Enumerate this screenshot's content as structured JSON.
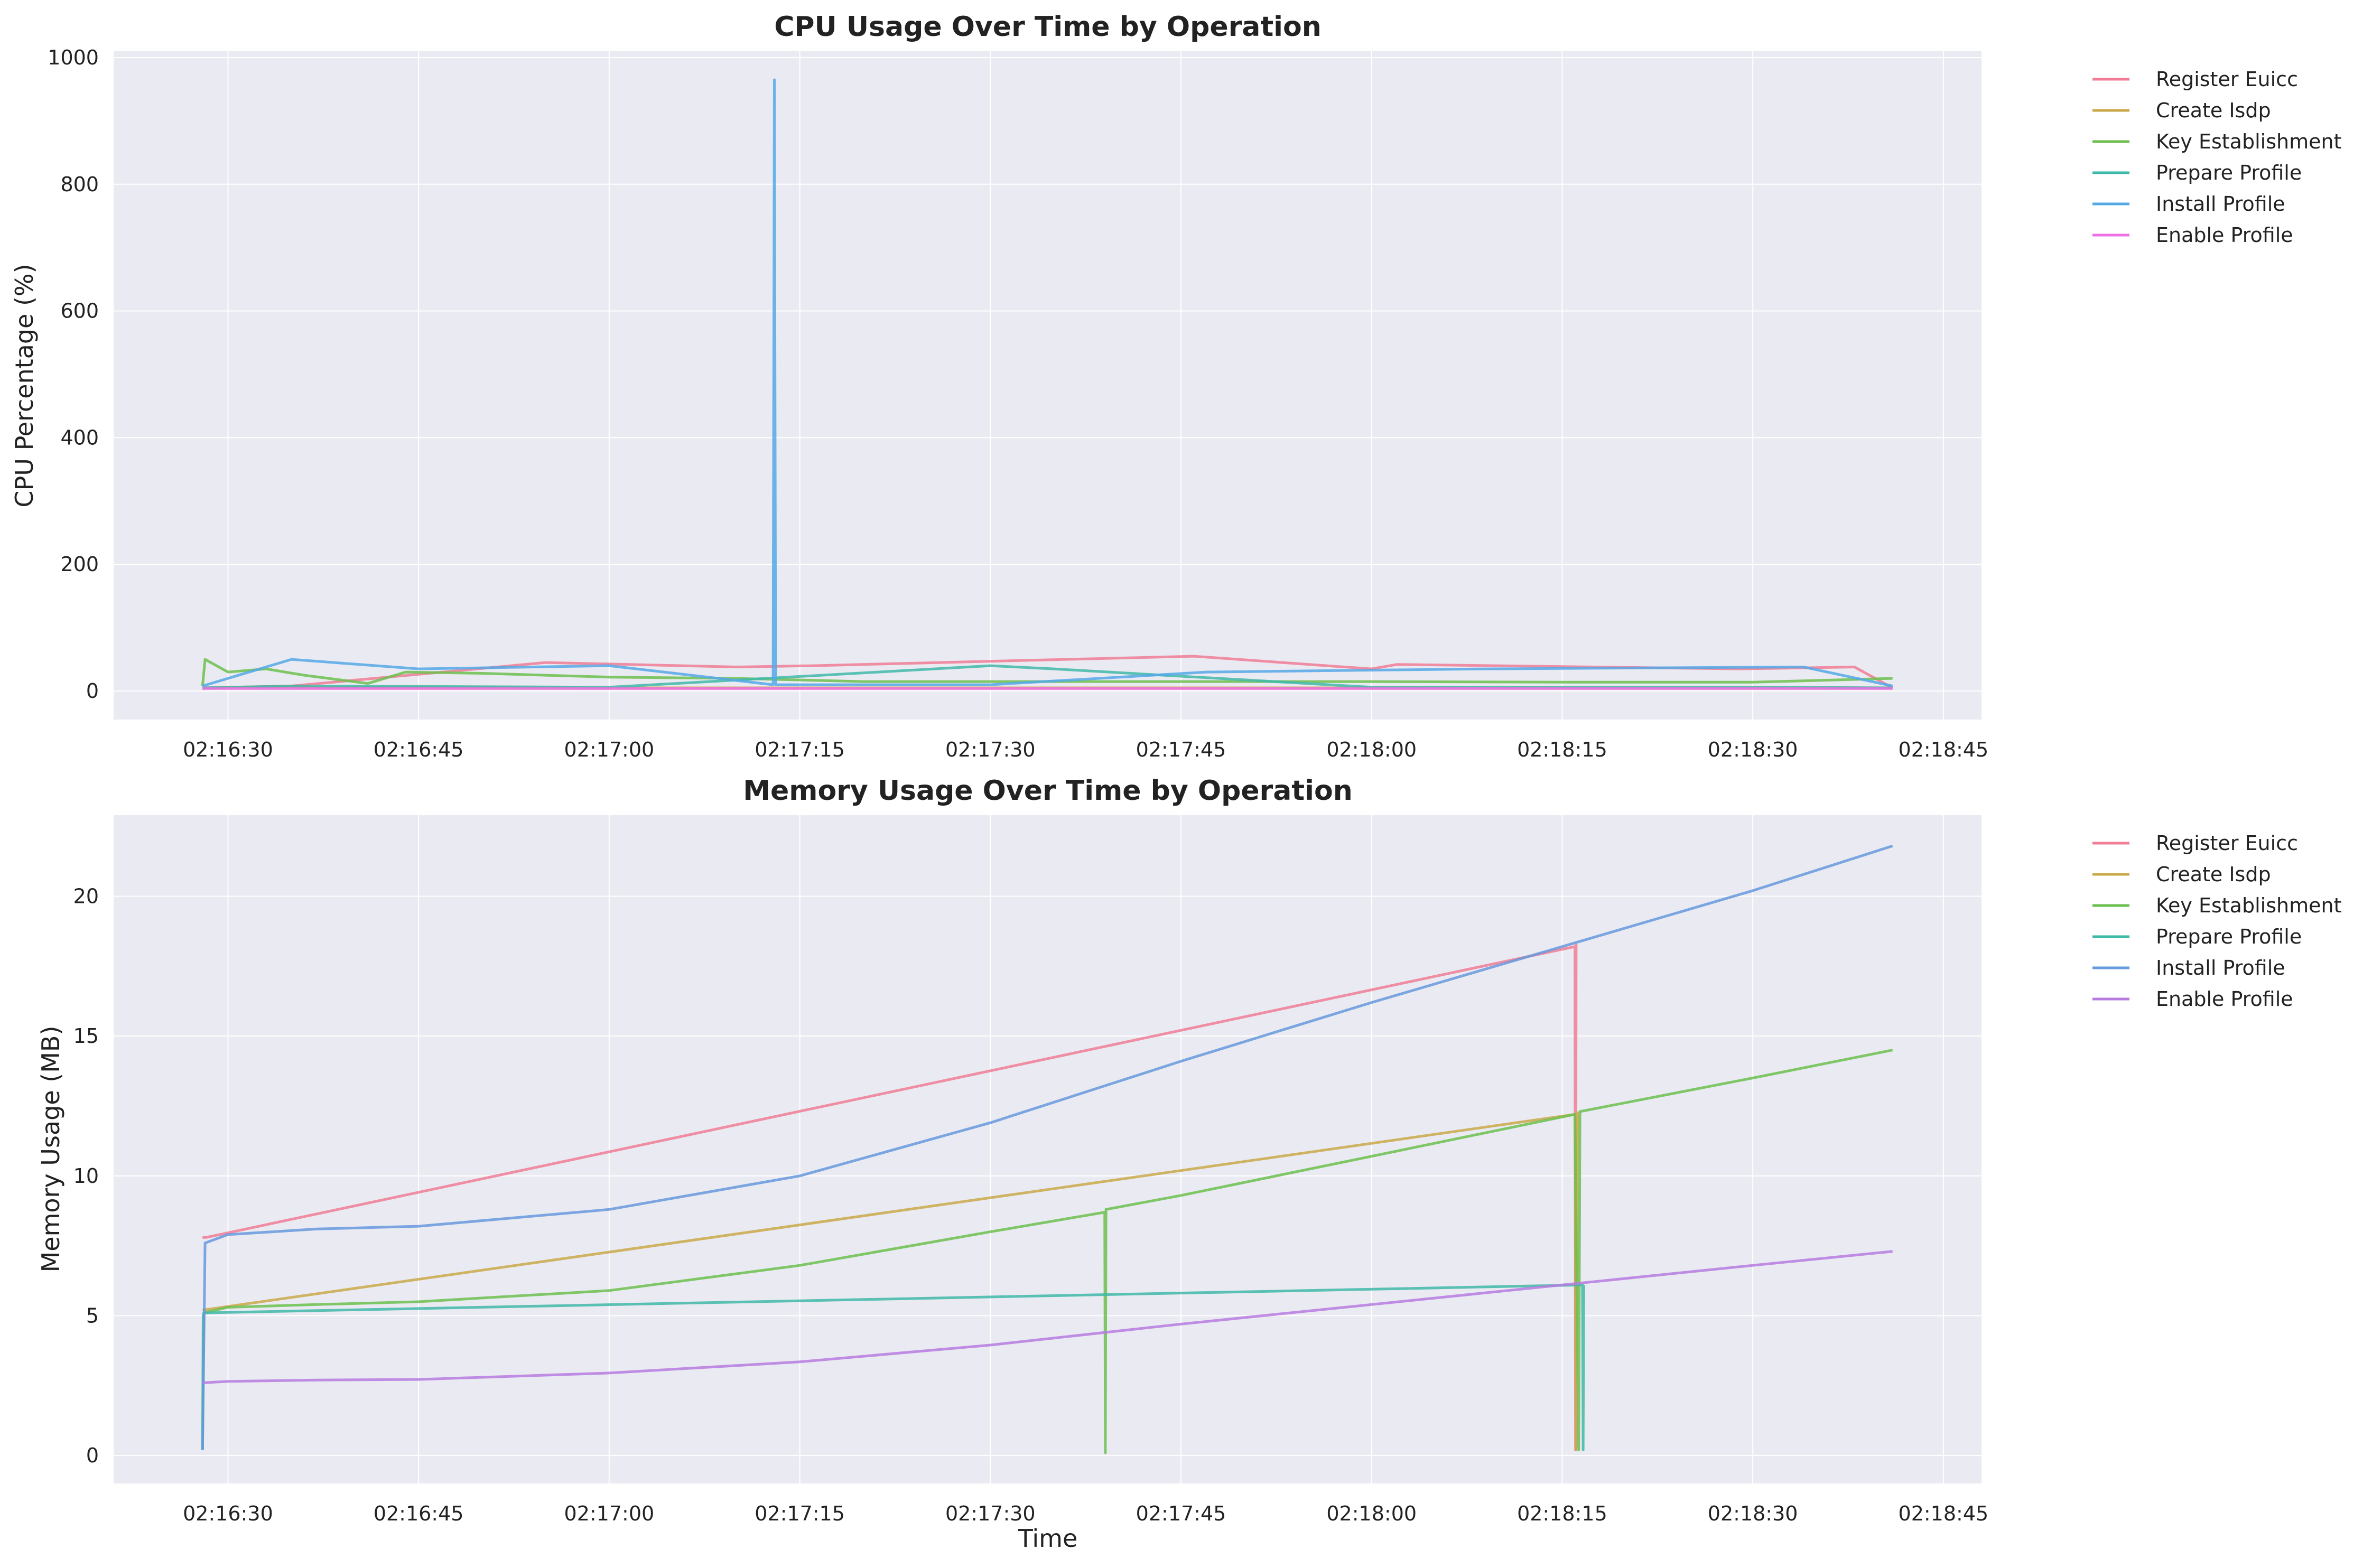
{
  "chart_data": [
    {
      "type": "line",
      "title": "CPU Usage Over Time by Operation",
      "xlabel": "",
      "ylabel": "CPU Percentage (%)",
      "x_ticks": [
        "02:16:30",
        "02:16:45",
        "02:17:00",
        "02:17:15",
        "02:17:30",
        "02:17:45",
        "02:18:00",
        "02:18:15",
        "02:18:30",
        "02:18:45"
      ],
      "y_ticks": [
        "0",
        "200",
        "400",
        "600",
        "800",
        "1000"
      ],
      "xlim": [
        "02:16:21",
        "02:18:48"
      ],
      "ylim": [
        -45,
        1010
      ],
      "grid": true,
      "legend_position": "outside-right",
      "series": [
        {
          "name": "Register Euicc",
          "color": "#f07c95",
          "x": [
            "02:16:28",
            "02:16:35",
            "02:16:55",
            "02:17:10",
            "02:17:16",
            "02:17:46",
            "02:18:00",
            "02:18:02",
            "02:18:29",
            "02:18:38",
            "02:18:41"
          ],
          "y": [
            5,
            8,
            45,
            38,
            40,
            55,
            35,
            42,
            35,
            38,
            5
          ]
        },
        {
          "name": "Create Isdp",
          "color": "#c9a94a",
          "x": [
            "02:16:28",
            "02:16:30",
            "02:17:00",
            "02:17:30",
            "02:18:00",
            "02:18:30",
            "02:18:41"
          ],
          "y": [
            4,
            6,
            5,
            5,
            5,
            5,
            5
          ]
        },
        {
          "name": "Key Establishment",
          "color": "#6cbf4f",
          "x": [
            "02:16:28",
            "02:16:28.2",
            "02:16:30",
            "02:16:33",
            "02:16:36",
            "02:16:41",
            "02:16:44",
            "02:16:50",
            "02:17:00",
            "02:17:10",
            "02:17:20",
            "02:17:30",
            "02:17:45",
            "02:18:00",
            "02:18:15",
            "02:18:30",
            "02:18:41"
          ],
          "y": [
            8,
            50,
            30,
            35,
            25,
            12,
            30,
            28,
            22,
            20,
            15,
            15,
            15,
            15,
            14,
            14,
            20
          ]
        },
        {
          "name": "Prepare Profile",
          "color": "#3fb8a8",
          "x": [
            "02:16:28",
            "02:16:35",
            "02:17:00",
            "02:17:30",
            "02:17:35",
            "02:18:00",
            "02:18:30",
            "02:18:41"
          ],
          "y": [
            5,
            8,
            6,
            40,
            35,
            6,
            6,
            5
          ]
        },
        {
          "name": "Install Profile",
          "color": "#55a8e8",
          "x": [
            "02:16:28",
            "02:16:35",
            "02:16:45",
            "02:17:00",
            "02:17:12.9",
            "02:17:13",
            "02:17:13.1",
            "02:17:30",
            "02:17:47",
            "02:18:09",
            "02:18:34",
            "02:18:41"
          ],
          "y": [
            8,
            50,
            35,
            40,
            10,
            965,
            10,
            10,
            30,
            35,
            38,
            8
          ]
        },
        {
          "name": "Enable Profile",
          "color": "#ee6fe8",
          "x": [
            "02:16:28",
            "02:16:40",
            "02:17:00",
            "02:17:30",
            "02:18:00",
            "02:18:30",
            "02:18:41"
          ],
          "y": [
            4,
            4,
            4,
            4,
            4,
            4,
            4
          ]
        }
      ]
    },
    {
      "type": "line",
      "title": "Memory Usage Over Time by Operation",
      "xlabel": "Time",
      "ylabel": "Memory Usage (MB)",
      "x_ticks": [
        "02:16:30",
        "02:16:45",
        "02:17:00",
        "02:17:15",
        "02:17:30",
        "02:17:45",
        "02:18:00",
        "02:18:15",
        "02:18:30",
        "02:18:45"
      ],
      "y_ticks": [
        "0",
        "5",
        "10",
        "15",
        "20"
      ],
      "xlim": [
        "02:16:21",
        "02:18:48"
      ],
      "ylim": [
        -1,
        22.9
      ],
      "grid": true,
      "legend_position": "outside-right",
      "series": [
        {
          "name": "Register Euicc",
          "color": "#f07c95",
          "x": [
            "02:16:28",
            "02:16:28.3",
            "02:18:16",
            "02:18:16.05",
            "02:18:16.1"
          ],
          "y": [
            7.8,
            7.8,
            18.2,
            0.2,
            18.3
          ]
        },
        {
          "name": "Create Isdp",
          "color": "#c9a94a",
          "x": [
            "02:16:28",
            "02:18:16",
            "02:18:16.1",
            "02:18:16.2"
          ],
          "y": [
            5.2,
            12.2,
            0.2,
            12.3
          ]
        },
        {
          "name": "Key Establishment",
          "color": "#6cbf4f",
          "x": [
            "02:16:28",
            "02:16:28.1",
            "02:16:30",
            "02:16:37",
            "02:16:45",
            "02:17:00",
            "02:17:15",
            "02:17:30",
            "02:17:39",
            "02:17:39.05",
            "02:17:39.1",
            "02:17:45",
            "02:18:00",
            "02:18:16",
            "02:18:16.3",
            "02:18:16.4",
            "02:18:30",
            "02:18:41"
          ],
          "y": [
            0.2,
            5.1,
            5.3,
            5.4,
            5.5,
            5.9,
            6.8,
            8.0,
            8.7,
            0.1,
            8.8,
            9.3,
            10.7,
            12.2,
            0.2,
            12.3,
            13.5,
            14.5
          ]
        },
        {
          "name": "Prepare Profile",
          "color": "#3fb8a8",
          "x": [
            "02:16:28",
            "02:16:28.05",
            "02:16:28.1",
            "02:18:16.6",
            "02:18:16.65",
            "02:18:16.7"
          ],
          "y": [
            0.2,
            5.0,
            5.1,
            6.1,
            0.2,
            6.1
          ]
        },
        {
          "name": "Install Profile",
          "color": "#6699dd",
          "x": [
            "02:16:28",
            "02:16:28.2",
            "02:16:30",
            "02:16:37",
            "02:16:45",
            "02:17:00",
            "02:17:15",
            "02:17:30",
            "02:17:45",
            "02:18:00",
            "02:18:15",
            "02:18:16.5",
            "02:18:30",
            "02:18:41"
          ],
          "y": [
            0.2,
            7.6,
            7.9,
            8.1,
            8.2,
            8.8,
            10.0,
            11.9,
            14.1,
            16.2,
            18.2,
            18.4,
            20.2,
            21.8
          ]
        },
        {
          "name": "Enable Profile",
          "color": "#b77be0",
          "x": [
            "02:16:28",
            "02:16:30",
            "02:16:37",
            "02:16:45",
            "02:17:00",
            "02:17:15",
            "02:17:30",
            "02:17:45",
            "02:18:00",
            "02:18:15",
            "02:18:30",
            "02:18:41"
          ],
          "y": [
            2.6,
            2.65,
            2.7,
            2.72,
            2.95,
            3.35,
            3.95,
            4.7,
            5.4,
            6.1,
            6.8,
            7.3
          ]
        }
      ]
    }
  ]
}
